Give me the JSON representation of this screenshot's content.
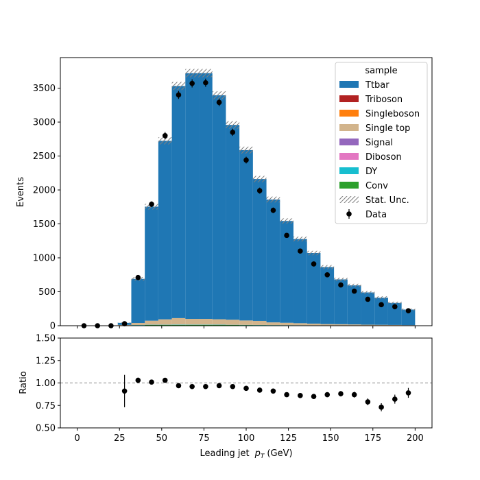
{
  "chart_data": [
    {
      "type": "bar",
      "subtype": "stacked-histogram-with-data-points",
      "xlabel": "",
      "ylabel": "Events",
      "xlim": [
        -10,
        210
      ],
      "ylim": [
        0,
        3950
      ],
      "xticks": [
        0,
        25,
        50,
        75,
        100,
        125,
        150,
        175,
        200
      ],
      "yticks": [
        0,
        500,
        1000,
        1500,
        2000,
        2500,
        3000,
        3500
      ],
      "grid": false,
      "legend_title": "sample",
      "legend_placement": "top-right",
      "bin_edges": [
        0,
        8,
        16,
        24,
        32,
        40,
        48,
        56,
        64,
        72,
        80,
        88,
        96,
        104,
        112,
        120,
        128,
        136,
        144,
        152,
        160,
        168,
        176,
        184,
        192,
        200
      ],
      "series": [
        {
          "name": "Ttbar",
          "color": "#1f77b4",
          "values": [
            0,
            0,
            0,
            30,
            650,
            1680,
            2630,
            3420,
            3620,
            3620,
            3300,
            2870,
            2510,
            2090,
            1810,
            1500,
            1240,
            1040,
            840,
            660,
            575,
            475,
            400,
            325,
            230
          ]
        },
        {
          "name": "Triboson",
          "color": "#b22222",
          "values": [
            0,
            0,
            0,
            0,
            0,
            0,
            0,
            0,
            0,
            0,
            0,
            0,
            0,
            0,
            0,
            0,
            0,
            0,
            0,
            0,
            0,
            0,
            0,
            0,
            0
          ]
        },
        {
          "name": "Singleboson",
          "color": "#ff7f0e",
          "values": [
            0,
            0,
            0,
            0,
            0,
            0,
            0,
            0,
            0,
            0,
            0,
            0,
            0,
            0,
            0,
            0,
            0,
            0,
            0,
            0,
            0,
            0,
            0,
            0,
            0
          ]
        },
        {
          "name": "Single top",
          "color": "#d2b48c",
          "values": [
            0,
            0,
            0,
            8,
            30,
            60,
            80,
            95,
            85,
            85,
            80,
            75,
            65,
            60,
            40,
            35,
            30,
            25,
            20,
            18,
            15,
            12,
            10,
            8,
            6
          ]
        },
        {
          "name": "Signal",
          "color": "#9467bd",
          "values": [
            0,
            0,
            0,
            0,
            0,
            0,
            0,
            0,
            0,
            0,
            0,
            0,
            0,
            0,
            0,
            0,
            0,
            0,
            0,
            0,
            0,
            0,
            0,
            0,
            0
          ]
        },
        {
          "name": "Diboson",
          "color": "#e377c2",
          "values": [
            0,
            0,
            0,
            0,
            0,
            0,
            0,
            0,
            0,
            0,
            0,
            0,
            0,
            0,
            0,
            0,
            0,
            0,
            0,
            0,
            0,
            0,
            0,
            0,
            0
          ]
        },
        {
          "name": "DY",
          "color": "#17becf",
          "values": [
            0,
            0,
            0,
            2,
            3,
            4,
            4,
            5,
            4,
            4,
            4,
            3,
            3,
            3,
            2,
            2,
            2,
            2,
            1,
            1,
            1,
            1,
            1,
            1,
            1
          ]
        },
        {
          "name": "Conv",
          "color": "#2ca02c",
          "values": [
            0,
            0,
            0,
            2,
            7,
            10,
            10,
            12,
            12,
            12,
            11,
            10,
            9,
            8,
            7,
            6,
            5,
            4,
            3,
            3,
            3,
            2,
            2,
            2,
            1
          ]
        }
      ],
      "stat_unc": {
        "name": "Stat. Unc.",
        "hatch": "////"
      },
      "data": {
        "name": "Data",
        "x": [
          4,
          12,
          20,
          28,
          36,
          44,
          52,
          60,
          68,
          76,
          84,
          92,
          100,
          108,
          116,
          124,
          132,
          140,
          148,
          156,
          164,
          172,
          180,
          188,
          196
        ],
        "y": [
          0,
          0,
          0,
          30,
          710,
          1790,
          2800,
          3400,
          3570,
          3580,
          3290,
          2850,
          2440,
          1990,
          1700,
          1330,
          1100,
          910,
          750,
          600,
          510,
          390,
          310,
          280,
          220
        ]
      }
    },
    {
      "type": "scatter",
      "subtype": "ratio-with-errorbars",
      "xlabel": "Leading jet  p_T (GeV)",
      "ylabel": "Ratio",
      "xlim": [
        -10,
        210
      ],
      "ylim": [
        0.5,
        1.5
      ],
      "xticks": [
        0,
        25,
        50,
        75,
        100,
        125,
        150,
        175,
        200
      ],
      "yticks": [
        0.5,
        0.75,
        1.0,
        1.25,
        1.5
      ],
      "ytick_labels": [
        "0.50",
        "0.75",
        "1.00",
        "1.25",
        "1.50"
      ],
      "reference_line": 1.0,
      "x": [
        28,
        36,
        44,
        52,
        60,
        68,
        76,
        84,
        92,
        100,
        108,
        116,
        124,
        132,
        140,
        148,
        156,
        164,
        172,
        180,
        188,
        196
      ],
      "y": [
        0.91,
        1.03,
        1.01,
        1.03,
        0.97,
        0.96,
        0.96,
        0.97,
        0.96,
        0.94,
        0.92,
        0.91,
        0.87,
        0.86,
        0.85,
        0.87,
        0.88,
        0.87,
        0.79,
        0.73,
        0.82,
        0.89
      ],
      "yerr": [
        0.18,
        0.03,
        0.02,
        0.015,
        0.015,
        0.015,
        0.015,
        0.015,
        0.015,
        0.017,
        0.018,
        0.02,
        0.02,
        0.022,
        0.025,
        0.027,
        0.03,
        0.032,
        0.038,
        0.045,
        0.05,
        0.055
      ]
    }
  ],
  "xlabel_main": "Leading jet",
  "xlabel_var": "p",
  "xlabel_sub": "T",
  "xlabel_unit": "(GeV)",
  "colors": {
    "errorbar": "#000000",
    "reference_line": "#808080",
    "hatch": "#808080"
  }
}
